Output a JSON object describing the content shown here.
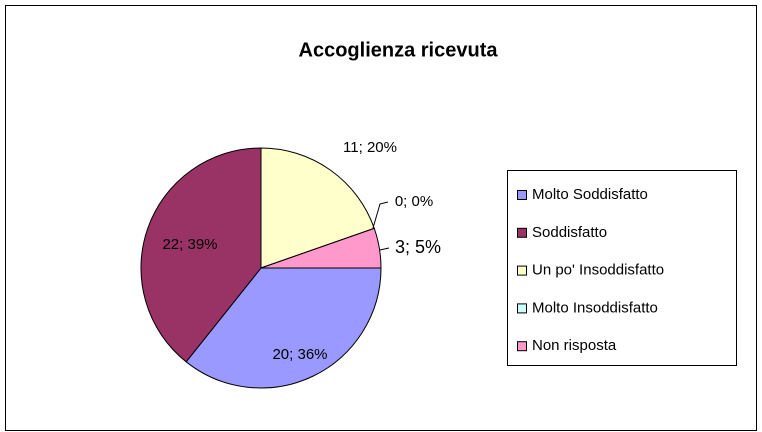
{
  "chart_data": {
    "type": "pie",
    "title": "Accoglienza ricevuta",
    "categories": [
      "Molto Soddisfatto",
      "Soddisfatto",
      "Un po' Insoddisfatto",
      "Molto Insoddisfatto",
      "Non risposta"
    ],
    "values": [
      20,
      22,
      11,
      0,
      3
    ],
    "value_labels": [
      "20; 36%",
      "22; 39%",
      "11; 20%",
      "0; 0%",
      "3; 5%"
    ],
    "colors": [
      "#9999FF",
      "#993366",
      "#FFFFCC",
      "#CCFFFF",
      "#FF99CC"
    ],
    "legend": "right"
  }
}
